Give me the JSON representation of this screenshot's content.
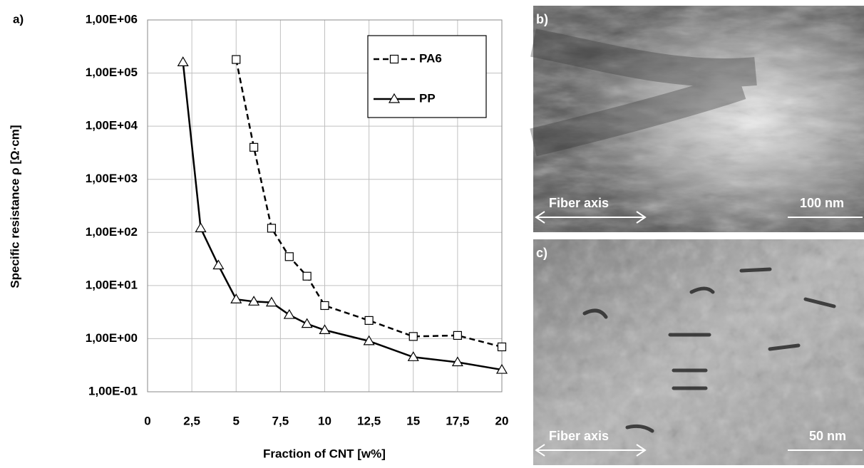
{
  "chart_data": {
    "type": "line",
    "panel_label": "a)",
    "x_label": "Fraction of CNT [w%]",
    "y_label": "Specific resistance ρ [Ω·cm]",
    "log_y": true,
    "grid": true,
    "legend": "upper right",
    "xlim": [
      0,
      20
    ],
    "xticks": [
      0,
      {
        "value": 2.5,
        "label": "2,5"
      },
      5,
      {
        "value": 7.5,
        "label": "7,5"
      },
      10,
      {
        "value": 12.5,
        "label": "12,5"
      },
      15,
      {
        "value": 17.5,
        "label": "17,5"
      },
      20
    ],
    "ylim": [
      0.1,
      1000000
    ],
    "yticks": [
      {
        "value": 0.1,
        "label": "1,00E-01"
      },
      {
        "value": 1,
        "label": "1,00E+00"
      },
      {
        "value": 10,
        "label": "1,00E+01"
      },
      {
        "value": 100,
        "label": "1,00E+02"
      },
      {
        "value": 1000,
        "label": "1,00E+03"
      },
      {
        "value": 10000,
        "label": "1,00E+04"
      },
      {
        "value": 100000,
        "label": "1,00E+05"
      },
      {
        "value": 1000000,
        "label": "1,00E+06"
      }
    ],
    "series": [
      {
        "name": "PA6",
        "color": "#000000",
        "line_style": "dashed",
        "marker": "square",
        "x": [
          5,
          6,
          7,
          8,
          9,
          10,
          12.5,
          15,
          17.5,
          20
        ],
        "values": [
          180000,
          4000,
          120,
          35,
          15,
          4.2,
          2.2,
          1.1,
          1.15,
          0.7
        ]
      },
      {
        "name": "PP",
        "color": "#000000",
        "line_style": "solid",
        "marker": "triangle",
        "x": [
          2,
          3,
          4,
          5,
          6,
          7,
          8,
          9,
          10,
          12.5,
          15,
          17.5,
          20
        ],
        "values": [
          160000,
          120,
          24,
          5.5,
          5,
          4.8,
          2.8,
          1.9,
          1.45,
          0.9,
          0.45,
          0.36,
          0.26
        ]
      }
    ]
  },
  "images": [
    {
      "label": "b)",
      "axis_caption": "Fiber axis",
      "scale_bar": "100 nm"
    },
    {
      "label": "c)",
      "axis_caption": "Fiber axis",
      "scale_bar": "50 nm"
    }
  ]
}
